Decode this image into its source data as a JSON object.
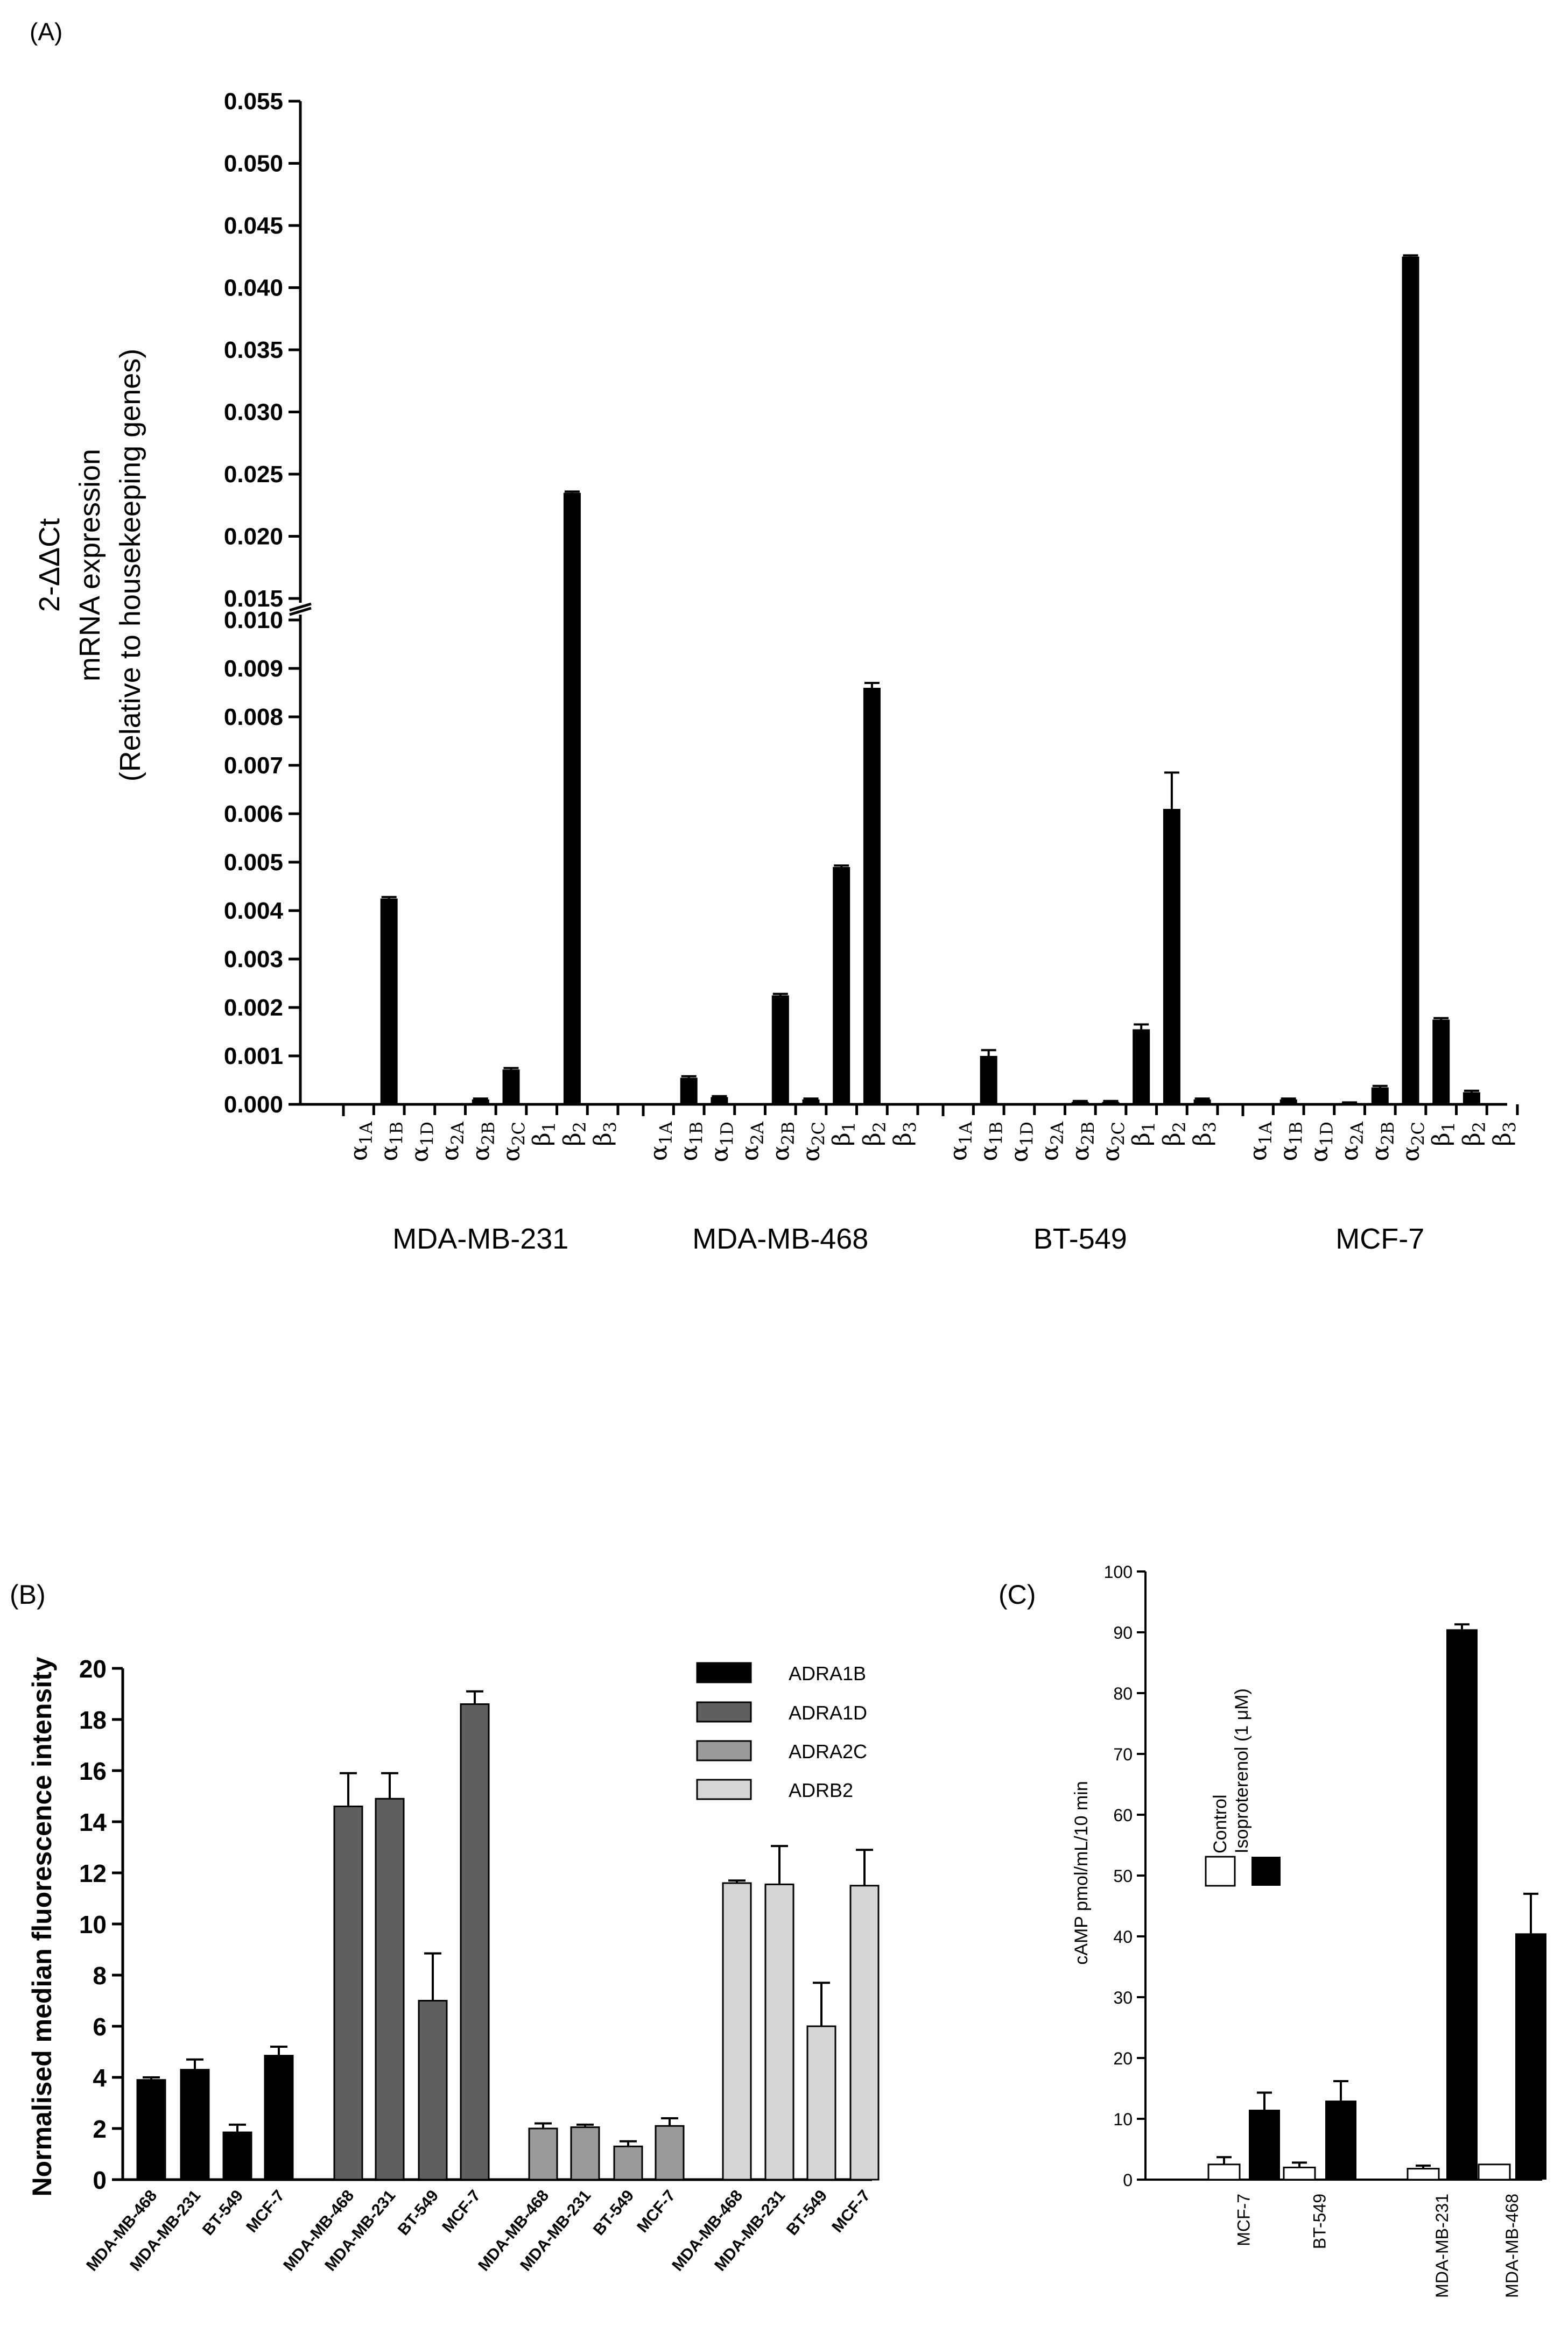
{
  "colors": {
    "black": "#000000",
    "adra1d": "#5f5f5f",
    "adra2c": "#9a9a9a",
    "adrb2": "#d6d6d6",
    "white": "#ffffff"
  },
  "chart_data": [
    {
      "panel": "(A)",
      "type": "bar",
      "ylabel_lines": [
        "2-ΔΔCt",
        "mRNA expression",
        "(Relative to housekeeping genes)"
      ],
      "y_ticks_lower": [
        "0.000",
        "0.001",
        "0.002",
        "0.003",
        "0.004",
        "0.005",
        "0.006",
        "0.007",
        "0.008",
        "0.009",
        "0.010"
      ],
      "y_ticks_upper": [
        "0.015",
        "0.020",
        "0.025",
        "0.030",
        "0.035",
        "0.040",
        "0.045",
        "0.050",
        "0.055"
      ],
      "ylim_lower": [
        0,
        0.01
      ],
      "ylim_upper": [
        0.015,
        0.055
      ],
      "receptors": [
        {
          "sym": "α",
          "sub": "1A"
        },
        {
          "sym": "α",
          "sub": "1B"
        },
        {
          "sym": "α",
          "sub": "1D"
        },
        {
          "sym": "α",
          "sub": "2A"
        },
        {
          "sym": "α",
          "sub": "2B"
        },
        {
          "sym": "α",
          "sub": "2C"
        },
        {
          "sym": "β",
          "sub": "1"
        },
        {
          "sym": "β",
          "sub": "2"
        },
        {
          "sym": "β",
          "sub": "3"
        }
      ],
      "groups": [
        {
          "name": "MDA-MB-231",
          "values": [
            0,
            0.00425,
            0,
            0,
            0.0001,
            0.00072,
            0,
            0.0235,
            0
          ],
          "errors": [
            0,
            3e-05,
            0,
            0,
            2e-05,
            3e-05,
            0,
            0.0001,
            0
          ]
        },
        {
          "name": "MDA-MB-468",
          "values": [
            0,
            0.00055,
            0.00015,
            0,
            0.00225,
            0.0001,
            0.0049,
            0.0086,
            0
          ],
          "errors": [
            0,
            3e-05,
            2e-05,
            0,
            3e-05,
            2e-05,
            3e-05,
            0.0001,
            0
          ]
        },
        {
          "name": "BT-549",
          "values": [
            0,
            0.001,
            0,
            0,
            5e-05,
            5e-05,
            0.00155,
            0.0061,
            0.0001
          ],
          "errors": [
            0,
            0.00012,
            0,
            0,
            2e-05,
            2e-05,
            0.0001,
            0.00075,
            2e-05
          ]
        },
        {
          "name": "MCF-7",
          "values": [
            0,
            0.0001,
            0,
            3e-05,
            0.00035,
            0.0425,
            0.00175,
            0.00025,
            0
          ],
          "errors": [
            0,
            2e-05,
            0,
            1e-05,
            3e-05,
            0.0001,
            3e-05,
            3e-05,
            0
          ]
        }
      ]
    },
    {
      "panel": "(B)",
      "type": "bar",
      "ylabel": "Normalised median fluorescence intensity",
      "y_ticks": [
        "0",
        "2",
        "4",
        "6",
        "8",
        "10",
        "12",
        "14",
        "16",
        "18",
        "20"
      ],
      "ylim": [
        0,
        20
      ],
      "legend": [
        "ADRA1B",
        "ADRA1D",
        "ADRA2C",
        "ADRB2"
      ],
      "legend_position": "top-right",
      "groups": [
        {
          "name": "ADRA1B",
          "categories": [
            "MDA-MB-468",
            "MDA-MB-231",
            "BT-549",
            "MCF-7"
          ],
          "values": [
            3.9,
            4.3,
            1.85,
            4.85
          ],
          "errors": [
            0.1,
            0.4,
            0.3,
            0.35
          ]
        },
        {
          "name": "ADRA1D",
          "categories": [
            "MDA-MB-468",
            "MDA-MB-231",
            "BT-549",
            "MCF-7"
          ],
          "values": [
            14.6,
            14.9,
            7.0,
            18.6
          ],
          "errors": [
            1.3,
            1.0,
            1.85,
            0.5
          ]
        },
        {
          "name": "ADRA2C",
          "categories": [
            "MDA-MB-468",
            "MDA-MB-231",
            "BT-549",
            "MCF-7"
          ],
          "values": [
            2.0,
            2.05,
            1.3,
            2.1
          ],
          "errors": [
            0.2,
            0.1,
            0.2,
            0.3
          ]
        },
        {
          "name": "ADRB2",
          "categories": [
            "MDA-MB-468",
            "MDA-MB-231",
            "BT-549",
            "MCF-7"
          ],
          "values": [
            11.6,
            11.55,
            6.0,
            11.5
          ],
          "errors": [
            0.1,
            1.5,
            1.7,
            1.4
          ]
        }
      ]
    },
    {
      "panel": "(C)",
      "type": "bar",
      "ylabel": "cAMP pmol/mL/10 min",
      "y_ticks": [
        "0",
        "10",
        "20",
        "30",
        "40",
        "50",
        "60",
        "70",
        "80",
        "90",
        "100"
      ],
      "ylim": [
        0,
        100
      ],
      "legend": [
        "Control",
        "Isoproterenol (1 μM)"
      ],
      "categories": [
        "MCF-7",
        "BT-549",
        "MDA-MB-231",
        "MDA-MB-468"
      ],
      "series": [
        {
          "name": "Control",
          "values": [
            2.5,
            2.0,
            1.8,
            2.5
          ],
          "errors": [
            1.2,
            0.8,
            0.5,
            0
          ]
        },
        {
          "name": "Isoproterenol (1 μM)",
          "values": [
            11.5,
            13.0,
            90.5,
            40.5
          ],
          "errors": [
            2.8,
            3.2,
            0.8,
            6.5
          ]
        }
      ]
    }
  ]
}
